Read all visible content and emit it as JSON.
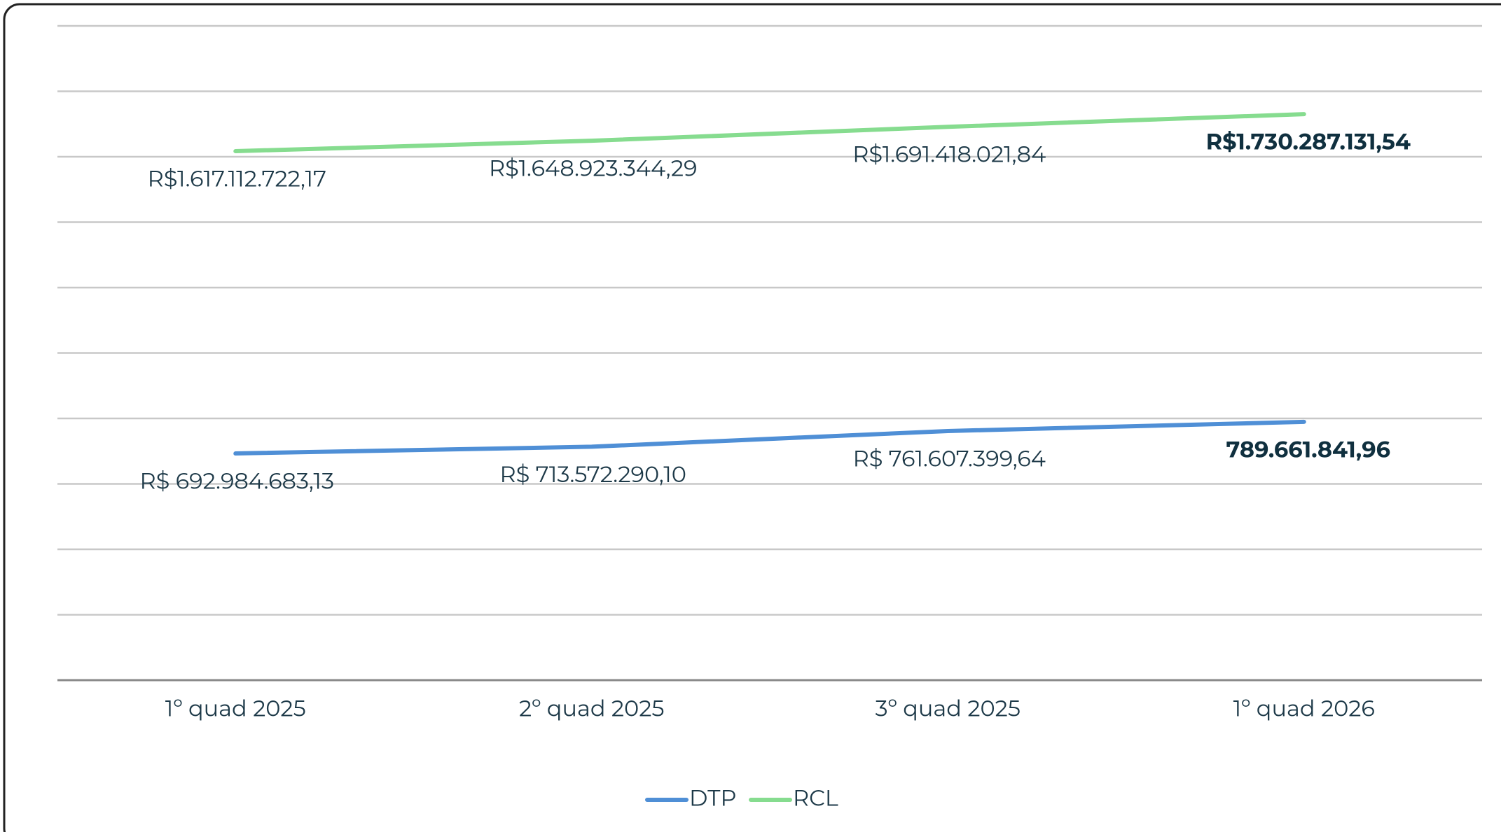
{
  "chart_data": {
    "type": "line",
    "categories": [
      "1º quad 2025",
      "2º quad 2025",
      "3º quad 2025",
      "1º quad 2026"
    ],
    "series": [
      {
        "name": "DTP",
        "color": "#4f8fd6",
        "values": [
          692984683.13,
          713572290.1,
          761607399.64,
          789661841.96
        ],
        "value_labels": [
          "R$ 692.984.683,13",
          "R$ 713.572.290,10",
          "R$ 761.607.399,64",
          "789.661.841,96"
        ]
      },
      {
        "name": "RCL",
        "color": "#86dc8f",
        "values": [
          1617112722.17,
          1648923344.29,
          1691418021.84,
          1730287131.54
        ],
        "value_labels": [
          "R$1.617.112.722,17",
          "R$1.648.923.344,29",
          "R$1.691.418.021,84",
          "R$1.730.287.131,54"
        ]
      }
    ],
    "ylim": [
      0,
      2000000000
    ],
    "yticks": [
      0,
      200000000,
      400000000,
      600000000,
      800000000,
      1000000000,
      1200000000,
      1400000000,
      1600000000,
      1800000000,
      2000000000
    ],
    "grid": true,
    "legend": "bottom"
  }
}
